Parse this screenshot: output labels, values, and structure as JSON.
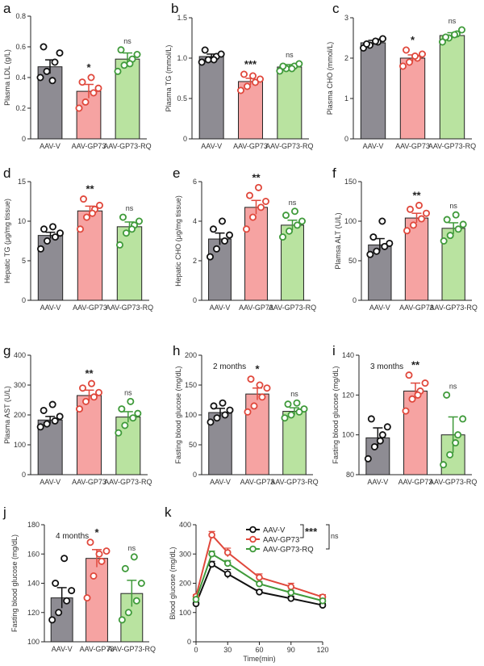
{
  "colors": {
    "AAV-V": "#8e8c93",
    "AAV-GP73": "#f6a3a2",
    "AAV-GP73-RQ": "#b9e3a0",
    "dot_V": "#111111",
    "dot_GP73": "#e0483c",
    "dot_RQ": "#3f9a3a"
  },
  "chart_data": [
    {
      "id": "a",
      "type": "bar",
      "panel_label": "a",
      "ylabel": "Plasma LDL (g/L)",
      "ylim": [
        0,
        0.8
      ],
      "yticks": [
        0,
        0.2,
        0.4,
        0.6,
        0.8
      ],
      "tick_labels": [
        "0",
        "0.2",
        "0.4",
        "0.6",
        "0.8"
      ],
      "categories": [
        "AAV-V",
        "AAV-GP73",
        "AAV-GP73-RQ"
      ],
      "values": [
        0.47,
        0.31,
        0.52
      ],
      "errors": [
        0.045,
        0.045,
        0.04
      ],
      "points": [
        [
          0.4,
          0.44,
          0.5,
          0.56,
          0.6,
          0.38
        ],
        [
          0.2,
          0.24,
          0.3,
          0.33,
          0.37,
          0.4
        ],
        [
          0.44,
          0.48,
          0.52,
          0.55,
          0.58,
          0.49
        ]
      ],
      "significance": [
        "",
        "*",
        "ns"
      ]
    },
    {
      "id": "b",
      "type": "bar",
      "panel_label": "b",
      "ylabel": "Plasma TG (mmol/L)",
      "ylim": [
        0,
        1.5
      ],
      "yticks": [
        0,
        0.5,
        1.0,
        1.5
      ],
      "tick_labels": [
        "0",
        "0.5",
        "1.0",
        "1.5"
      ],
      "categories": [
        "AAV-V",
        "AAV-GP73",
        "AAV-GP73-RQ"
      ],
      "values": [
        1.02,
        0.71,
        0.89
      ],
      "errors": [
        0.03,
        0.04,
        0.03
      ],
      "points": [
        [
          0.95,
          0.98,
          1.02,
          1.05,
          1.1,
          0.98
        ],
        [
          0.6,
          0.65,
          0.7,
          0.74,
          0.8,
          0.78
        ],
        [
          0.84,
          0.87,
          0.9,
          0.93,
          0.9,
          0.87
        ]
      ],
      "significance": [
        "",
        "***",
        "ns"
      ]
    },
    {
      "id": "c",
      "type": "bar",
      "panel_label": "c",
      "ylabel": "Plasma CHO (mmol/L)",
      "ylim": [
        0,
        3
      ],
      "yticks": [
        0,
        1,
        2,
        3
      ],
      "tick_labels": [
        "0",
        "1",
        "2",
        "3"
      ],
      "categories": [
        "AAV-V",
        "AAV-GP73",
        "AAV-GP73-RQ"
      ],
      "values": [
        2.38,
        2.0,
        2.56
      ],
      "errors": [
        0.06,
        0.08,
        0.07
      ],
      "points": [
        [
          2.25,
          2.32,
          2.4,
          2.48,
          2.35,
          2.42
        ],
        [
          1.8,
          1.9,
          2.0,
          2.1,
          2.2,
          2.05
        ],
        [
          2.4,
          2.5,
          2.6,
          2.7,
          2.52,
          2.58
        ]
      ],
      "significance": [
        "",
        "*",
        "ns"
      ]
    },
    {
      "id": "d",
      "type": "bar",
      "panel_label": "d",
      "ylabel": "Hepatic TG (μg/mg tissue)",
      "ylim": [
        0,
        15
      ],
      "yticks": [
        0,
        5,
        10,
        15
      ],
      "tick_labels": [
        "0",
        "5",
        "10",
        "15"
      ],
      "categories": [
        "AAV-V",
        "AAV-GP73",
        "AAV-GP73-RQ"
      ],
      "values": [
        8.2,
        11.3,
        9.3
      ],
      "errors": [
        0.4,
        0.6,
        0.6
      ],
      "points": [
        [
          6.5,
          7.5,
          8.0,
          8.5,
          9.0,
          9.3
        ],
        [
          9.0,
          10.5,
          11.5,
          12.0,
          12.8,
          11.0
        ],
        [
          7.0,
          8.5,
          9.5,
          10.0,
          10.5,
          9.0
        ]
      ],
      "significance": [
        "",
        "**",
        "ns"
      ]
    },
    {
      "id": "e",
      "type": "bar",
      "panel_label": "e",
      "ylabel": "Hepatic CHO (μg/mg tissue)",
      "ylim": [
        0,
        6
      ],
      "yticks": [
        0,
        2,
        4,
        6
      ],
      "tick_labels": [
        "0",
        "2",
        "4",
        "6"
      ],
      "categories": [
        "AAV-V",
        "AAV-GP73",
        "AAV-GP73-RQ"
      ],
      "values": [
        3.1,
        4.7,
        3.8
      ],
      "errors": [
        0.3,
        0.35,
        0.25
      ],
      "points": [
        [
          2.2,
          2.6,
          3.0,
          3.3,
          3.6,
          4.0
        ],
        [
          3.6,
          4.2,
          4.7,
          5.0,
          5.3,
          5.7
        ],
        [
          3.2,
          3.5,
          3.8,
          4.0,
          4.3,
          4.5
        ]
      ],
      "significance": [
        "",
        "**",
        "ns"
      ]
    },
    {
      "id": "f",
      "type": "bar",
      "panel_label": "f",
      "ylabel": "Plamsa ALT (U/L)",
      "ylim": [
        0,
        150
      ],
      "yticks": [
        0,
        50,
        100,
        150
      ],
      "tick_labels": [
        "0",
        "50",
        "100",
        "150"
      ],
      "categories": [
        "AAV-V",
        "AAV-GP73",
        "AAV-GP73-RQ"
      ],
      "values": [
        70,
        104,
        91
      ],
      "errors": [
        8,
        6,
        7
      ],
      "points": [
        [
          58,
          62,
          68,
          72,
          80,
          100
        ],
        [
          88,
          95,
          103,
          110,
          115,
          120
        ],
        [
          75,
          82,
          90,
          96,
          102,
          108
        ]
      ],
      "significance": [
        "",
        "**",
        "ns"
      ]
    },
    {
      "id": "g",
      "type": "bar",
      "panel_label": "g",
      "ylabel": "Plasma AST (U/L)",
      "ylim": [
        0,
        400
      ],
      "yticks": [
        0,
        100,
        200,
        300,
        400
      ],
      "tick_labels": [
        "0",
        "100",
        "200",
        "300",
        "400"
      ],
      "categories": [
        "AAV-V",
        "AAV-GP73",
        "AAV-GP73-RQ"
      ],
      "values": [
        183,
        265,
        193
      ],
      "errors": [
        12,
        18,
        18
      ],
      "points": [
        [
          160,
          170,
          180,
          195,
          215,
          235
        ],
        [
          220,
          245,
          260,
          275,
          290,
          305
        ],
        [
          140,
          165,
          190,
          205,
          220,
          245
        ]
      ],
      "significance": [
        "",
        "**",
        "ns"
      ]
    },
    {
      "id": "h",
      "type": "bar",
      "panel_label": "h",
      "ylabel": "Fasting blood glucose (mg/dL)",
      "note": "2 months",
      "ylim": [
        0,
        200
      ],
      "yticks": [
        0,
        50,
        100,
        150,
        200
      ],
      "tick_labels": [
        "0",
        "50",
        "100",
        "150",
        "200"
      ],
      "categories": [
        "AAV-V",
        "AAV-GP73",
        "AAV-GP73-RQ"
      ],
      "values": [
        104,
        135,
        106
      ],
      "errors": [
        7,
        10,
        6
      ],
      "points": [
        [
          88,
          95,
          100,
          108,
          115,
          120
        ],
        [
          105,
          115,
          130,
          145,
          160,
          150
        ],
        [
          95,
          100,
          105,
          110,
          118,
          120
        ]
      ],
      "significance": [
        "",
        "*",
        "ns"
      ]
    },
    {
      "id": "i",
      "type": "bar",
      "panel_label": "i",
      "ylabel": "Fasting blood glucose (mg/dL)",
      "note": "3 months",
      "ylim": [
        80,
        140
      ],
      "yticks": [
        80,
        100,
        120,
        140
      ],
      "tick_labels": [
        "80",
        "100",
        "120",
        "140"
      ],
      "categories": [
        "AAV-V",
        "AAV-GP73",
        "AAV-GP73-RQ"
      ],
      "values": [
        98.5,
        122,
        100
      ],
      "errors": [
        5,
        4,
        9
      ],
      "points": [
        [
          88,
          94,
          100,
          104,
          108,
          97
        ],
        [
          112,
          118,
          122,
          126,
          130,
          120
        ],
        [
          85,
          90,
          100,
          108,
          120,
          96
        ]
      ],
      "significance": [
        "",
        "**",
        "ns"
      ]
    },
    {
      "id": "j",
      "type": "bar",
      "panel_label": "j",
      "ylabel": "Fasting blood glucose (mg/dL)",
      "note": "4 months",
      "ylim": [
        100,
        180
      ],
      "yticks": [
        100,
        120,
        140,
        160,
        180
      ],
      "tick_labels": [
        "100",
        "120",
        "140",
        "160",
        "180"
      ],
      "categories": [
        "AAV-V",
        "AAV-GP73",
        "AAV-GP73-RQ"
      ],
      "values": [
        130,
        157,
        133
      ],
      "errors": [
        7,
        6,
        9
      ],
      "points": [
        [
          115,
          120,
          128,
          135,
          140,
          157
        ],
        [
          130,
          145,
          155,
          162,
          168,
          160
        ],
        [
          115,
          120,
          128,
          140,
          150,
          158
        ]
      ],
      "significance": [
        "",
        "*",
        "ns"
      ]
    },
    {
      "id": "k",
      "type": "line",
      "panel_label": "k",
      "ylabel": "Blood glucose (mg/dL)",
      "xlabel": "Time(min)",
      "x": [
        0,
        15,
        30,
        60,
        90,
        120
      ],
      "xlim": [
        0,
        120
      ],
      "xticks": [
        0,
        30,
        60,
        90,
        120
      ],
      "ylim": [
        0,
        400
      ],
      "yticks": [
        0,
        100,
        200,
        300,
        400
      ],
      "tick_labels": [
        "0",
        "100",
        "200",
        "300",
        "400"
      ],
      "series": [
        {
          "name": "AAV-V",
          "values": [
            130,
            265,
            232,
            170,
            148,
            125
          ],
          "errors": [
            5,
            10,
            15,
            8,
            8,
            6
          ],
          "color": "#111111"
        },
        {
          "name": "AAV-GP73",
          "values": [
            155,
            365,
            305,
            220,
            188,
            153
          ],
          "errors": [
            6,
            12,
            15,
            12,
            12,
            8
          ],
          "color": "#e0483c"
        },
        {
          "name": "AAV-GP73-RQ",
          "values": [
            145,
            300,
            268,
            198,
            168,
            140
          ],
          "errors": [
            5,
            10,
            10,
            8,
            8,
            6
          ],
          "color": "#3f9a3a"
        }
      ],
      "legend_position": "top-right",
      "significance": [
        "***",
        "ns"
      ]
    }
  ]
}
